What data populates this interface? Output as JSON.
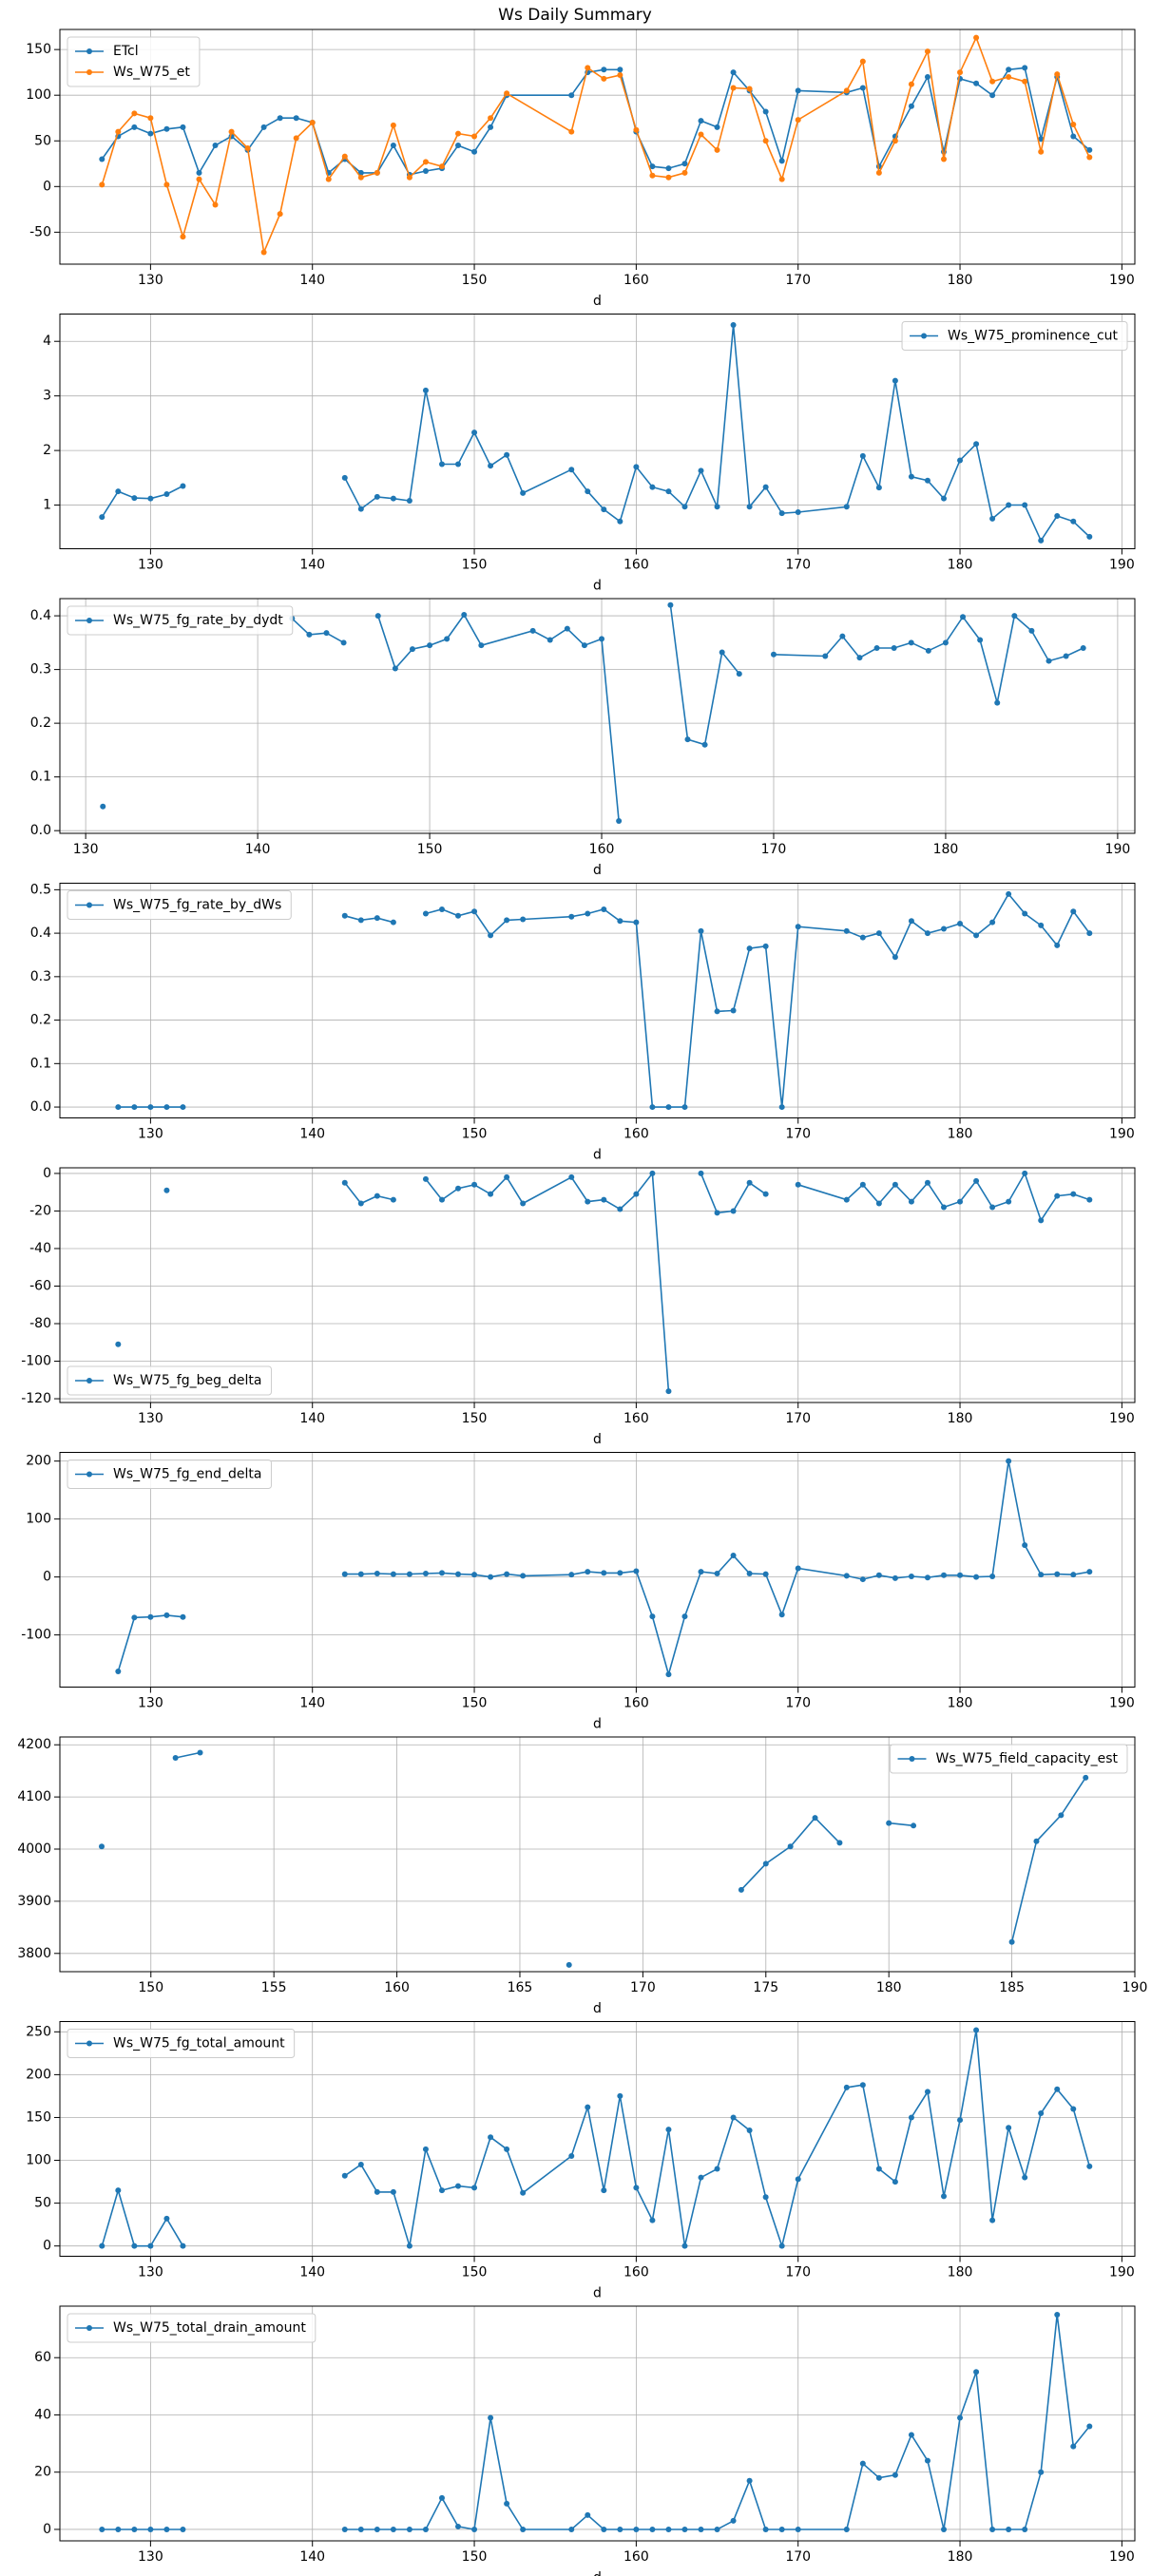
{
  "title": "Ws Daily Summary",
  "chart_data": [
    {
      "type": "line",
      "xlabel": "d",
      "legend": "upper left",
      "grid": true,
      "xlim": [
        124.4,
        190.8
      ],
      "xticks": [
        130,
        140,
        150,
        160,
        170,
        180,
        190
      ],
      "ylim": [
        -85,
        172
      ],
      "yticks": [
        -50,
        0,
        50,
        100,
        150
      ],
      "x": [
        127,
        128,
        129,
        130,
        131,
        132,
        133,
        134,
        135,
        136,
        137,
        138,
        139,
        140,
        141,
        142,
        143,
        144,
        145,
        146,
        147,
        148,
        149,
        150,
        151,
        152,
        156,
        157,
        158,
        159,
        160,
        161,
        162,
        163,
        164,
        165,
        166,
        167,
        168,
        169,
        170,
        173,
        174,
        175,
        176,
        177,
        178,
        179,
        180,
        181,
        182,
        183,
        184,
        185,
        186,
        187,
        188
      ],
      "series": [
        {
          "name": "ETcl",
          "color": "#1f77b4",
          "values": [
            30,
            55,
            65,
            58,
            63,
            65,
            15,
            45,
            55,
            40,
            65,
            75,
            75,
            70,
            15,
            30,
            15,
            15,
            45,
            13,
            17,
            20,
            45,
            38,
            65,
            100,
            100,
            125,
            128,
            128,
            60,
            22,
            20,
            25,
            72,
            65,
            125,
            105,
            82,
            28,
            105,
            103,
            108,
            22,
            55,
            88,
            120,
            38,
            118,
            113,
            100,
            128,
            130,
            52,
            120,
            55,
            40
          ]
        },
        {
          "name": "Ws_W75_et",
          "color": "#ff7f0e",
          "values": [
            2,
            60,
            80,
            75,
            2,
            -55,
            8,
            -20,
            60,
            42,
            -72,
            -30,
            53,
            70,
            8,
            33,
            10,
            15,
            67,
            10,
            27,
            22,
            58,
            55,
            75,
            102,
            60,
            130,
            118,
            122,
            62,
            12,
            10,
            15,
            57,
            40,
            108,
            107,
            50,
            8,
            73,
            105,
            137,
            15,
            50,
            112,
            148,
            30,
            125,
            163,
            115,
            120,
            115,
            38,
            123,
            68,
            32
          ]
        }
      ]
    },
    {
      "type": "line",
      "xlabel": "d",
      "legend": "upper right",
      "grid": true,
      "xlim": [
        124.4,
        190.8
      ],
      "xticks": [
        130,
        140,
        150,
        160,
        170,
        180,
        190
      ],
      "ylim": [
        0.2,
        4.5
      ],
      "yticks": [
        1,
        2,
        3,
        4
      ],
      "x": [
        127,
        128,
        129,
        130,
        131,
        132,
        133,
        142,
        143,
        144,
        145,
        146,
        147,
        148,
        149,
        150,
        151,
        152,
        153,
        156,
        157,
        158,
        159,
        160,
        161,
        162,
        163,
        164,
        165,
        166,
        167,
        168,
        169,
        170,
        173,
        174,
        175,
        176,
        177,
        178,
        179,
        180,
        181,
        182,
        183,
        184,
        185,
        186,
        187,
        188
      ],
      "series": [
        {
          "name": "Ws_W75_prominence_cut",
          "color": "#1f77b4",
          "values": [
            0.78,
            1.25,
            1.13,
            1.12,
            1.2,
            1.35,
            null,
            1.5,
            0.93,
            1.15,
            1.12,
            1.08,
            3.1,
            1.75,
            1.75,
            2.33,
            1.72,
            1.92,
            1.22,
            1.65,
            1.25,
            0.92,
            0.7,
            1.7,
            1.33,
            1.25,
            0.97,
            1.63,
            0.97,
            4.3,
            0.97,
            1.33,
            0.85,
            0.87,
            0.97,
            1.9,
            1.32,
            3.28,
            1.52,
            1.45,
            1.12,
            1.82,
            2.12,
            0.75,
            1.0,
            1.0,
            0.35,
            0.8,
            0.7,
            0.42
          ]
        }
      ]
    },
    {
      "type": "line",
      "xlabel": "d",
      "legend": "upper left",
      "grid": true,
      "xlim": [
        128.5,
        191.0
      ],
      "xticks": [
        130,
        140,
        150,
        160,
        170,
        180,
        190
      ],
      "ylim": [
        -0.005,
        0.432
      ],
      "yticks": [
        {
          "value": 0,
          "label": "0.0"
        },
        0.1,
        0.2,
        0.3,
        0.4
      ],
      "x": [
        131,
        132,
        142,
        143,
        144,
        145,
        146,
        147,
        148,
        149,
        150,
        151,
        152,
        153,
        156,
        157,
        158,
        159,
        160,
        161,
        163,
        164,
        165,
        166,
        167,
        168,
        169,
        170,
        173,
        174,
        175,
        176,
        177,
        178,
        179,
        180,
        181,
        182,
        183,
        184,
        185,
        186,
        187,
        188
      ],
      "series": [
        {
          "name": "Ws_W75_fg_rate_by_dydt",
          "color": "#1f77b4",
          "values": [
            0.045,
            null,
            0.395,
            0.365,
            0.368,
            0.35,
            null,
            0.4,
            0.302,
            0.338,
            0.345,
            0.357,
            0.402,
            0.345,
            0.372,
            0.355,
            0.376,
            0.345,
            0.357,
            0.018,
            null,
            0.42,
            0.17,
            0.16,
            0.332,
            0.292,
            null,
            0.328,
            0.325,
            0.362,
            0.322,
            0.34,
            0.34,
            0.35,
            0.335,
            0.35,
            0.398,
            0.355,
            0.238,
            0.4,
            0.372,
            0.316,
            0.325,
            0.34
          ]
        }
      ]
    },
    {
      "type": "line",
      "xlabel": "d",
      "legend": "upper left",
      "grid": true,
      "xlim": [
        124.4,
        190.8
      ],
      "xticks": [
        130,
        140,
        150,
        160,
        170,
        180,
        190
      ],
      "ylim": [
        -0.025,
        0.515
      ],
      "yticks": [
        {
          "value": 0,
          "label": "0.0"
        },
        0.1,
        0.2,
        0.3,
        0.4,
        0.5
      ],
      "x": [
        128,
        129,
        130,
        131,
        132,
        133,
        142,
        143,
        144,
        145,
        146,
        147,
        148,
        149,
        150,
        151,
        152,
        153,
        156,
        157,
        158,
        159,
        160,
        161,
        162,
        163,
        164,
        165,
        166,
        167,
        168,
        169,
        170,
        173,
        174,
        175,
        176,
        177,
        178,
        179,
        180,
        181,
        182,
        183,
        184,
        185,
        186,
        187,
        188
      ],
      "series": [
        {
          "name": "Ws_W75_fg_rate_by_dWs",
          "color": "#1f77b4",
          "values": [
            0,
            0,
            0,
            0,
            0,
            null,
            0.44,
            0.43,
            0.435,
            0.425,
            null,
            0.445,
            0.455,
            0.44,
            0.45,
            0.395,
            0.43,
            0.432,
            0.438,
            0.445,
            0.455,
            0.428,
            0.425,
            0,
            0,
            0,
            0.405,
            0.22,
            0.222,
            0.365,
            0.37,
            0,
            0.415,
            0.405,
            0.39,
            0.4,
            0.345,
            0.428,
            0.4,
            0.41,
            0.422,
            0.395,
            0.425,
            0.49,
            0.445,
            0.418,
            0.372,
            0.45,
            0.4
          ]
        }
      ]
    },
    {
      "type": "line",
      "xlabel": "d",
      "legend": "lower left",
      "grid": true,
      "xlim": [
        124.4,
        190.8
      ],
      "xticks": [
        130,
        140,
        150,
        160,
        170,
        180,
        190
      ],
      "ylim": [
        -122,
        3
      ],
      "yticks": [
        -120,
        -100,
        -80,
        -60,
        -40,
        -20,
        0
      ],
      "x": [
        128,
        129,
        131,
        132,
        142,
        143,
        144,
        145,
        146,
        147,
        148,
        149,
        150,
        151,
        152,
        153,
        156,
        157,
        158,
        159,
        160,
        161,
        162,
        163,
        164,
        165,
        166,
        167,
        168,
        169,
        170,
        173,
        174,
        175,
        176,
        177,
        178,
        179,
        180,
        181,
        182,
        183,
        184,
        185,
        186,
        187,
        188
      ],
      "series": [
        {
          "name": "Ws_W75_fg_beg_delta",
          "color": "#1f77b4",
          "values": [
            -91,
            null,
            -9,
            null,
            -5,
            -16,
            -12,
            -14,
            null,
            -3,
            -14,
            -8,
            -6,
            -11,
            -2,
            -16,
            -2,
            -15,
            -14,
            -19,
            -11,
            0,
            -116,
            null,
            0,
            -21,
            -20,
            -5,
            -11,
            null,
            -6,
            -14,
            -6,
            -16,
            -6,
            -15,
            -5,
            -18,
            -15,
            -4,
            -18,
            -15,
            0,
            -25,
            -12,
            -11,
            -14
          ]
        }
      ]
    },
    {
      "type": "line",
      "xlabel": "d",
      "legend": "upper left",
      "grid": true,
      "xlim": [
        124.4,
        190.8
      ],
      "xticks": [
        130,
        140,
        150,
        160,
        170,
        180,
        190
      ],
      "ylim": [
        -190,
        215
      ],
      "yticks": [
        -100,
        0,
        100,
        200
      ],
      "x": [
        128,
        129,
        130,
        131,
        132,
        133,
        142,
        143,
        144,
        145,
        146,
        147,
        148,
        149,
        150,
        151,
        152,
        153,
        156,
        157,
        158,
        159,
        160,
        161,
        162,
        163,
        164,
        165,
        166,
        167,
        168,
        169,
        170,
        173,
        174,
        175,
        176,
        177,
        178,
        179,
        180,
        181,
        182,
        183,
        184,
        185,
        186,
        187,
        188
      ],
      "series": [
        {
          "name": "Ws_W75_fg_end_delta",
          "color": "#1f77b4",
          "values": [
            -163,
            -70,
            -69,
            -66,
            -69,
            null,
            5,
            5,
            6,
            5,
            5,
            6,
            7,
            5,
            4,
            0,
            5,
            2,
            4,
            9,
            7,
            7,
            10,
            -68,
            -168,
            -68,
            9,
            6,
            37,
            6,
            5,
            -65,
            15,
            2,
            -4,
            3,
            -2,
            1,
            -1,
            3,
            3,
            0,
            1,
            200,
            55,
            4,
            5,
            4,
            9
          ]
        }
      ]
    },
    {
      "type": "line",
      "xlabel": "d",
      "legend": "upper right",
      "grid": true,
      "xlim": [
        146.3,
        190.0
      ],
      "xticks": [
        150,
        155,
        160,
        165,
        170,
        175,
        180,
        185,
        190
      ],
      "ylim": [
        3765,
        4215
      ],
      "yticks": [
        3800,
        3900,
        4000,
        4100,
        4200
      ],
      "x": [
        148,
        149,
        151,
        152,
        153,
        167,
        168,
        174,
        175,
        176,
        177,
        178,
        179,
        180,
        181,
        182,
        185,
        186,
        187,
        188
      ],
      "series": [
        {
          "name": "Ws_W75_field_capacity_est",
          "color": "#1f77b4",
          "values": [
            4005,
            null,
            4175,
            4185,
            null,
            3778,
            null,
            3922,
            3972,
            4005,
            4060,
            4012,
            null,
            4050,
            4045,
            null,
            3822,
            4015,
            4065,
            4137
          ]
        }
      ]
    },
    {
      "type": "line",
      "xlabel": "d",
      "legend": "upper left",
      "grid": true,
      "xlim": [
        124.4,
        190.8
      ],
      "xticks": [
        130,
        140,
        150,
        160,
        170,
        180,
        190
      ],
      "ylim": [
        -12,
        262
      ],
      "yticks": [
        0,
        50,
        100,
        150,
        200,
        250
      ],
      "x": [
        127,
        128,
        129,
        130,
        131,
        132,
        133,
        142,
        143,
        144,
        145,
        146,
        147,
        148,
        149,
        150,
        151,
        152,
        153,
        156,
        157,
        158,
        159,
        160,
        161,
        162,
        163,
        164,
        165,
        166,
        167,
        168,
        169,
        170,
        173,
        174,
        175,
        176,
        177,
        178,
        179,
        180,
        181,
        182,
        183,
        184,
        185,
        186,
        187,
        188
      ],
      "series": [
        {
          "name": "Ws_W75_fg_total_amount",
          "color": "#1f77b4",
          "values": [
            0,
            65,
            0,
            0,
            32,
            0,
            null,
            82,
            95,
            63,
            63,
            0,
            113,
            65,
            70,
            68,
            127,
            113,
            62,
            105,
            162,
            65,
            175,
            68,
            30,
            136,
            0,
            80,
            90,
            150,
            135,
            57,
            0,
            78,
            185,
            188,
            90,
            75,
            150,
            180,
            58,
            147,
            252,
            30,
            138,
            80,
            155,
            183,
            160,
            93
          ]
        }
      ]
    },
    {
      "type": "line",
      "xlabel": "d",
      "legend": "upper left",
      "grid": true,
      "xlim": [
        124.4,
        190.8
      ],
      "xticks": [
        130,
        140,
        150,
        160,
        170,
        180,
        190
      ],
      "ylim": [
        -4,
        78
      ],
      "yticks": [
        0,
        20,
        40,
        60
      ],
      "x": [
        127,
        128,
        129,
        130,
        131,
        132,
        133,
        142,
        143,
        144,
        145,
        146,
        147,
        148,
        149,
        150,
        151,
        152,
        153,
        156,
        157,
        158,
        159,
        160,
        161,
        162,
        163,
        164,
        165,
        166,
        167,
        168,
        169,
        170,
        173,
        174,
        175,
        176,
        177,
        178,
        179,
        180,
        181,
        182,
        183,
        184,
        185,
        186,
        187,
        188
      ],
      "series": [
        {
          "name": "Ws_W75_total_drain_amount",
          "color": "#1f77b4",
          "values": [
            0,
            0,
            0,
            0,
            0,
            0,
            null,
            0,
            0,
            0,
            0,
            0,
            0,
            11,
            1,
            0,
            39,
            9,
            0,
            0,
            5,
            0,
            0,
            0,
            0,
            0,
            0,
            0,
            0,
            3,
            17,
            0,
            0,
            0,
            0,
            23,
            18,
            19,
            33,
            24,
            0,
            39,
            55,
            0,
            0,
            0,
            20,
            75,
            29,
            36
          ]
        }
      ]
    }
  ]
}
